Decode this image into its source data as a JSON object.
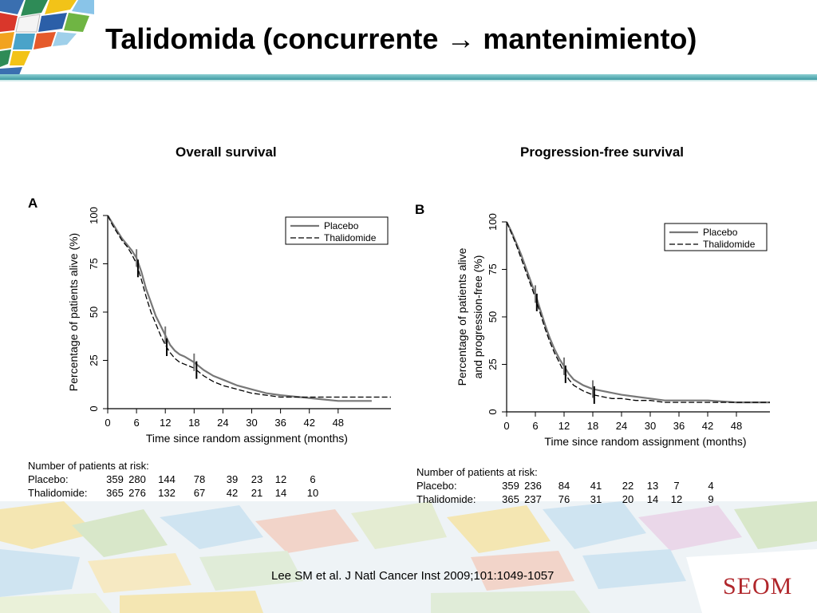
{
  "slide": {
    "title": "Talidomida (concurrente → mantenimiento)",
    "citation": "Lee SM et al. J Natl Cancer Inst 2009;101:1049-1057",
    "brand": "SEOM"
  },
  "colors": {
    "accent_rule": "#3e9aa3",
    "brand": "#b0262b",
    "placebo_line": "#777777",
    "thalidomide_line": "#000000"
  },
  "chart_data": [
    {
      "type": "line",
      "title": "Overall survival",
      "panel": "A",
      "xlabel": "Time since random assignment (months)",
      "ylabel": "Percentage of patients alive (%)",
      "ylabel_lines": [
        "Percentage of patients alive (%)"
      ],
      "xticks": [
        0,
        6,
        12,
        18,
        24,
        30,
        36,
        42,
        48
      ],
      "yticks": [
        0,
        25,
        50,
        75,
        100
      ],
      "xlim": [
        0,
        59
      ],
      "ylim": [
        0,
        100
      ],
      "grid": false,
      "legend_position": "top-right",
      "series": [
        {
          "name": "Placebo",
          "style": "solid",
          "x": [
            0,
            1,
            2,
            3,
            4,
            5,
            6,
            7,
            8,
            9,
            10,
            11,
            12,
            13,
            14,
            15,
            16,
            18,
            20,
            22,
            24,
            27,
            30,
            33,
            36,
            40,
            44,
            48,
            55
          ],
          "y": [
            100,
            96,
            92,
            88,
            85,
            82,
            78,
            71,
            62,
            55,
            48,
            43,
            38,
            33,
            30,
            28,
            27,
            24,
            20,
            17,
            15,
            12,
            10,
            8,
            7,
            6,
            5,
            4,
            4
          ]
        },
        {
          "name": "Thalidomide",
          "style": "dashed",
          "x": [
            0,
            1,
            2,
            3,
            4,
            5,
            6,
            7,
            8,
            9,
            10,
            11,
            12,
            13,
            14,
            15,
            16,
            18,
            20,
            22,
            24,
            27,
            30,
            33,
            36,
            40,
            44,
            48,
            59
          ],
          "y": [
            100,
            95,
            91,
            87,
            84,
            80,
            75,
            67,
            58,
            50,
            44,
            38,
            33,
            29,
            26,
            24,
            23,
            21,
            17,
            14,
            12,
            10,
            8,
            7,
            6,
            6,
            6,
            6,
            6
          ]
        }
      ],
      "censor_marks": [
        {
          "series": "Placebo",
          "x": [
            6,
            12,
            18
          ]
        },
        {
          "series": "Thalidomide",
          "x": [
            6.3,
            12.3,
            18.5
          ]
        }
      ],
      "risk_table": {
        "heading": "Number of patients at risk:",
        "rows": [
          {
            "label": "Placebo:",
            "values": [
              "359",
              "280",
              "144",
              "78",
              "39",
              "23",
              "12",
              "6"
            ]
          },
          {
            "label": "Thalidomide:",
            "values": [
              "365",
              "276",
              "132",
              "67",
              "42",
              "21",
              "14",
              "10"
            ]
          }
        ]
      }
    },
    {
      "type": "line",
      "title": "Progression-free survival",
      "panel": "B",
      "xlabel": "Time since random assignment (months)",
      "ylabel": "Percentage of patients alive and progression-free (%)",
      "ylabel_lines": [
        "Percentage of patients alive",
        "and progression-free (%)"
      ],
      "xticks": [
        0,
        6,
        12,
        18,
        24,
        30,
        36,
        42,
        48
      ],
      "yticks": [
        0,
        25,
        50,
        75,
        100
      ],
      "xlim": [
        0,
        55
      ],
      "ylim": [
        0,
        100
      ],
      "grid": false,
      "legend_position": "top-right",
      "series": [
        {
          "name": "Placebo",
          "style": "solid",
          "x": [
            0,
            1,
            2,
            3,
            4,
            5,
            6,
            7,
            8,
            9,
            10,
            11,
            12,
            13,
            14,
            16,
            18,
            20,
            22,
            24,
            27,
            30,
            33,
            36,
            42,
            48,
            55
          ],
          "y": [
            100,
            95,
            89,
            83,
            76,
            69,
            62,
            54,
            46,
            39,
            33,
            28,
            24,
            20,
            17,
            14,
            12,
            11,
            10,
            9,
            8,
            7,
            6,
            6,
            6,
            5,
            5
          ]
        },
        {
          "name": "Thalidomide",
          "style": "dashed",
          "x": [
            0,
            1,
            2,
            3,
            4,
            5,
            6,
            7,
            8,
            9,
            10,
            11,
            12,
            13,
            14,
            16,
            18,
            20,
            22,
            24,
            27,
            30,
            33,
            36,
            42,
            48,
            55
          ],
          "y": [
            100,
            94,
            88,
            81,
            74,
            67,
            60,
            52,
            44,
            37,
            31,
            26,
            21,
            17,
            14,
            11,
            9,
            8,
            7,
            7,
            6,
            6,
            5,
            5,
            5,
            5,
            5
          ]
        }
      ],
      "censor_marks": [
        {
          "series": "Placebo",
          "x": [
            6,
            12,
            18
          ]
        },
        {
          "series": "Thalidomide",
          "x": [
            6.3,
            12.3,
            18.3
          ]
        }
      ],
      "risk_table": {
        "heading": "Number of patients at risk:",
        "rows": [
          {
            "label": "Placebo:",
            "values": [
              "359",
              "236",
              "84",
              "41",
              "22",
              "13",
              "7",
              "4"
            ]
          },
          {
            "label": "Thalidomide:",
            "values": [
              "365",
              "237",
              "76",
              "31",
              "20",
              "14",
              "12",
              "9"
            ]
          }
        ]
      }
    }
  ]
}
